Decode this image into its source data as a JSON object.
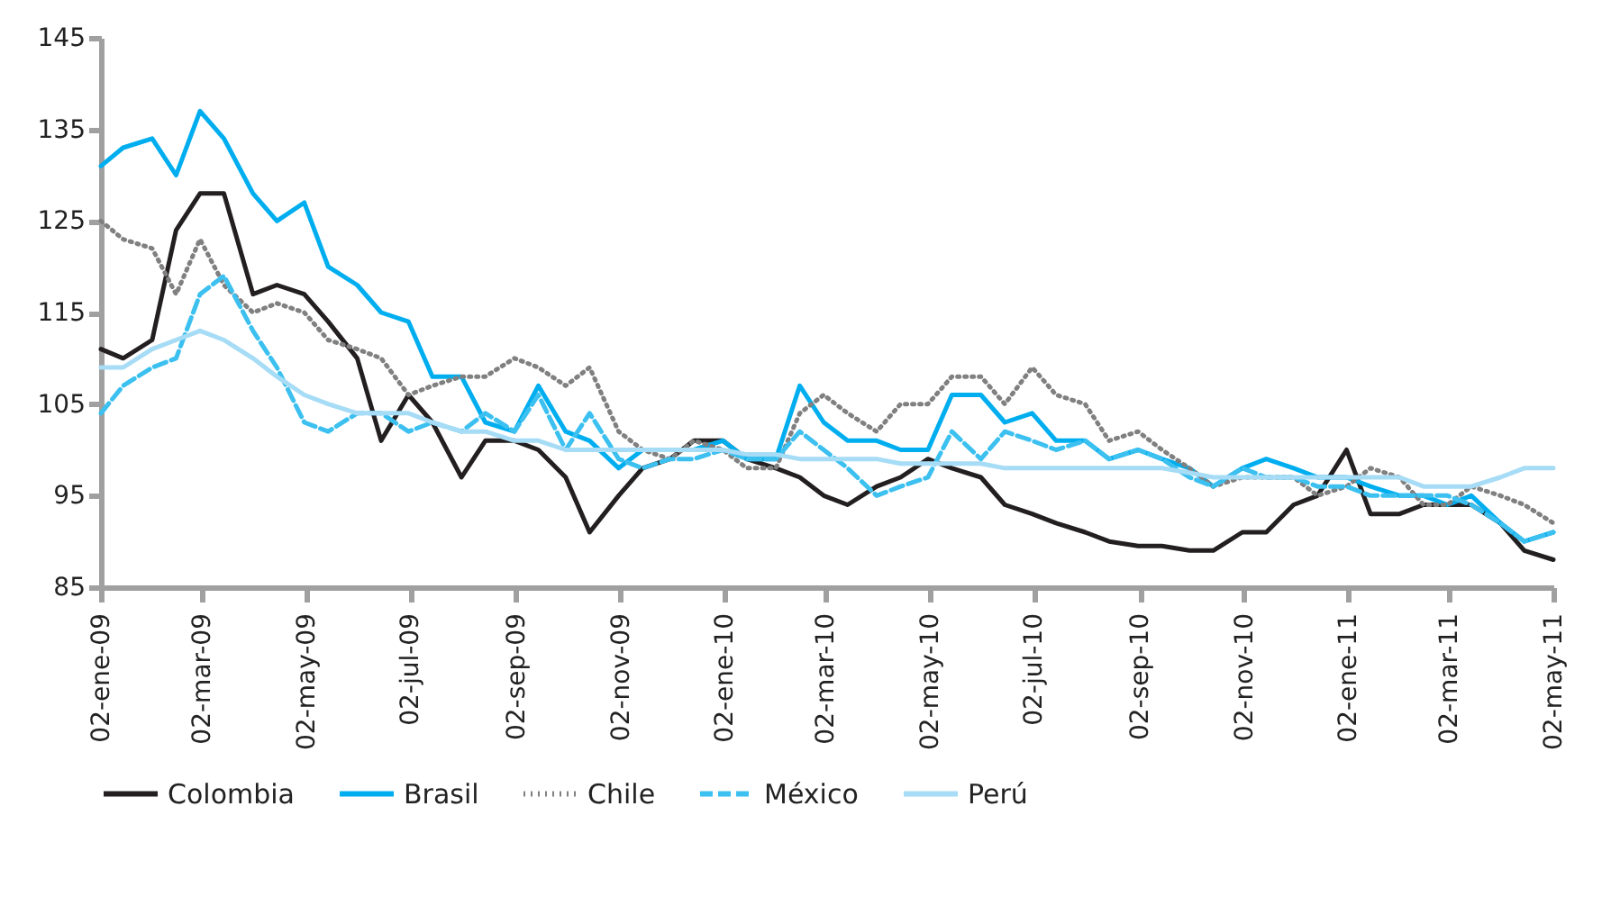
{
  "chart_data": {
    "type": "line",
    "x": [
      "2009-01-02",
      "2009-01-15",
      "2009-02-01",
      "2009-02-15",
      "2009-03-01",
      "2009-03-15",
      "2009-04-01",
      "2009-04-15",
      "2009-05-01",
      "2009-05-15",
      "2009-06-01",
      "2009-06-15",
      "2009-07-01",
      "2009-07-15",
      "2009-08-01",
      "2009-08-15",
      "2009-09-01",
      "2009-09-15",
      "2009-10-01",
      "2009-10-15",
      "2009-11-01",
      "2009-11-15",
      "2009-12-01",
      "2009-12-15",
      "2010-01-01",
      "2010-01-15",
      "2010-02-01",
      "2010-02-15",
      "2010-03-01",
      "2010-03-15",
      "2010-04-01",
      "2010-04-15",
      "2010-05-01",
      "2010-05-15",
      "2010-06-01",
      "2010-06-15",
      "2010-07-01",
      "2010-07-15",
      "2010-08-01",
      "2010-08-15",
      "2010-09-01",
      "2010-09-15",
      "2010-10-01",
      "2010-10-15",
      "2010-11-01",
      "2010-11-15",
      "2010-12-01",
      "2010-12-15",
      "2011-01-01",
      "2011-01-15",
      "2011-02-01",
      "2011-02-15",
      "2011-03-01",
      "2011-03-15",
      "2011-04-01",
      "2011-04-15",
      "2011-05-02"
    ],
    "series": [
      {
        "name": "Colombia",
        "color": "#231f20",
        "line_style": "solid",
        "values": [
          111,
          110,
          112,
          124,
          128,
          128,
          117,
          118,
          117,
          114,
          110,
          101,
          106,
          103,
          97,
          101,
          101,
          100,
          97,
          91,
          95,
          98,
          99,
          101,
          101,
          99,
          98,
          97,
          95,
          94,
          96,
          97,
          99,
          98,
          97,
          94,
          93,
          92,
          91,
          90,
          89.5,
          89.5,
          89,
          89,
          91,
          91,
          94,
          95,
          100,
          93,
          93,
          94,
          94,
          94,
          92,
          89,
          88
        ]
      },
      {
        "name": "Brasil",
        "color": "#00aeef",
        "line_style": "solid",
        "values": [
          131,
          133,
          134,
          130,
          137,
          134,
          128,
          125,
          127,
          120,
          118,
          115,
          114,
          108,
          108,
          103,
          102,
          107,
          102,
          101,
          98,
          100,
          100,
          100,
          101,
          99,
          99,
          107,
          103,
          101,
          101,
          100,
          100,
          106,
          106,
          103,
          104,
          101,
          101,
          99,
          100,
          99,
          98,
          96,
          98,
          99,
          98,
          97,
          97,
          96,
          95,
          95,
          94,
          95,
          92,
          90,
          91
        ]
      },
      {
        "name": "Chile",
        "color": "#808080",
        "line_style": "dotted",
        "values": [
          125,
          123,
          122,
          117,
          123,
          118,
          115,
          116,
          115,
          112,
          111,
          110,
          106,
          107,
          108,
          108,
          110,
          109,
          107,
          109,
          102,
          100,
          99,
          101,
          100,
          98,
          98,
          104,
          106,
          104,
          102,
          105,
          105,
          108,
          108,
          105,
          109,
          106,
          105,
          101,
          102,
          100,
          98,
          96,
          97,
          97,
          97,
          95,
          96,
          98,
          97,
          94,
          94,
          96,
          95,
          94,
          92
        ]
      },
      {
        "name": "México",
        "color": "#3cc0f0",
        "line_style": "dashed",
        "values": [
          104,
          107,
          109,
          110,
          117,
          119,
          113,
          109,
          103,
          102,
          104,
          104,
          102,
          103,
          102,
          104,
          102,
          106,
          100,
          104,
          99,
          98,
          99,
          99,
          100,
          99,
          99,
          102,
          100,
          98,
          95,
          96,
          97,
          102,
          99,
          102,
          101,
          100,
          101,
          99,
          100,
          99,
          97,
          96,
          98,
          97,
          97,
          96,
          96,
          95,
          95,
          95,
          95,
          94,
          92,
          90,
          91
        ]
      },
      {
        "name": "Perú",
        "color": "#a6dcf5",
        "line_style": "solid",
        "values": [
          109,
          109,
          111,
          112,
          113,
          112,
          110,
          108,
          106,
          105,
          104,
          104,
          104,
          103,
          102,
          102,
          101,
          101,
          100,
          100,
          100,
          100,
          100,
          100,
          100,
          99.5,
          99.5,
          99,
          99,
          99,
          99,
          98.5,
          98.5,
          98.5,
          98.5,
          98,
          98,
          98,
          98,
          98,
          98,
          98,
          97.5,
          97,
          97,
          97,
          97,
          97,
          97,
          97,
          97,
          96,
          96,
          96,
          97,
          98,
          98
        ]
      }
    ],
    "xlim": [
      "2009-01-02",
      "2011-05-02"
    ],
    "xticks": [
      {
        "value": "2009-01-02",
        "label": "02-ene-09"
      },
      {
        "value": "2009-03-02",
        "label": "02-mar-09"
      },
      {
        "value": "2009-05-02",
        "label": "02-may-09"
      },
      {
        "value": "2009-07-02",
        "label": "02-jul-09"
      },
      {
        "value": "2009-09-02",
        "label": "02-sep-09"
      },
      {
        "value": "2009-11-02",
        "label": "02-nov-09"
      },
      {
        "value": "2010-01-02",
        "label": "02-ene-10"
      },
      {
        "value": "2010-03-02",
        "label": "02-mar-10"
      },
      {
        "value": "2010-05-02",
        "label": "02-may-10"
      },
      {
        "value": "2010-07-02",
        "label": "02-jul-10"
      },
      {
        "value": "2010-09-02",
        "label": "02-sep-10"
      },
      {
        "value": "2010-11-02",
        "label": "02-nov-10"
      },
      {
        "value": "2011-01-02",
        "label": "02-ene-11"
      },
      {
        "value": "2011-03-02",
        "label": "02-mar-11"
      },
      {
        "value": "2011-05-02",
        "label": "02-may-11"
      }
    ],
    "ylim": [
      85,
      145
    ],
    "yticks": [
      85,
      95,
      105,
      115,
      125,
      135,
      145
    ],
    "grid": false,
    "legend": "bottom"
  }
}
